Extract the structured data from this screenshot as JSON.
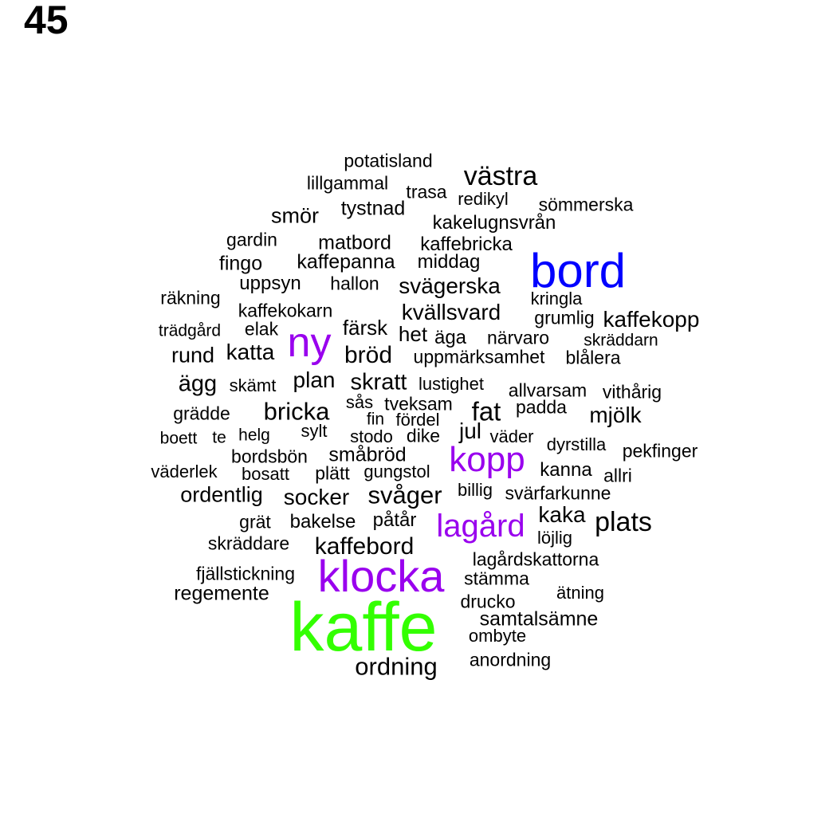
{
  "page_number": "45",
  "colors": {
    "default": "#000000",
    "blue": "#0000ff",
    "purple": "#9900ee",
    "green": "#33ff00"
  },
  "words": [
    {
      "text": "potatisland",
      "color": "default"
    },
    {
      "text": "västra",
      "color": "default"
    },
    {
      "text": "lillgammal",
      "color": "default"
    },
    {
      "text": "trasa",
      "color": "default"
    },
    {
      "text": "redikyl",
      "color": "default"
    },
    {
      "text": "sömmerska",
      "color": "default"
    },
    {
      "text": "tystnad",
      "color": "default"
    },
    {
      "text": "smör",
      "color": "default"
    },
    {
      "text": "kakelugnsvrån",
      "color": "default"
    },
    {
      "text": "gardin",
      "color": "default"
    },
    {
      "text": "matbord",
      "color": "default"
    },
    {
      "text": "kaffebricka",
      "color": "default"
    },
    {
      "text": "bord",
      "color": "blue"
    },
    {
      "text": "fingo",
      "color": "default"
    },
    {
      "text": "kaffepanna",
      "color": "default"
    },
    {
      "text": "middag",
      "color": "default"
    },
    {
      "text": "uppsyn",
      "color": "default"
    },
    {
      "text": "hallon",
      "color": "default"
    },
    {
      "text": "svägerska",
      "color": "default"
    },
    {
      "text": "räkning",
      "color": "default"
    },
    {
      "text": "kringla",
      "color": "default"
    },
    {
      "text": "kaffekokarn",
      "color": "default"
    },
    {
      "text": "kvällsvard",
      "color": "default"
    },
    {
      "text": "grumlig",
      "color": "default"
    },
    {
      "text": "kaffekopp",
      "color": "default"
    },
    {
      "text": "trädgård",
      "color": "default"
    },
    {
      "text": "elak",
      "color": "default"
    },
    {
      "text": "färsk",
      "color": "default"
    },
    {
      "text": "het",
      "color": "default"
    },
    {
      "text": "äga",
      "color": "default"
    },
    {
      "text": "närvaro",
      "color": "default"
    },
    {
      "text": "skräddarn",
      "color": "default"
    },
    {
      "text": "ny",
      "color": "purple"
    },
    {
      "text": "rund",
      "color": "default"
    },
    {
      "text": "katta",
      "color": "default"
    },
    {
      "text": "bröd",
      "color": "default"
    },
    {
      "text": "uppmärksamhet",
      "color": "default"
    },
    {
      "text": "blålera",
      "color": "default"
    },
    {
      "text": "ägg",
      "color": "default"
    },
    {
      "text": "skämt",
      "color": "default"
    },
    {
      "text": "plan",
      "color": "default"
    },
    {
      "text": "skratt",
      "color": "default"
    },
    {
      "text": "lustighet",
      "color": "default"
    },
    {
      "text": "allvarsam",
      "color": "default"
    },
    {
      "text": "vithårig",
      "color": "default"
    },
    {
      "text": "sås",
      "color": "default"
    },
    {
      "text": "tveksam",
      "color": "default"
    },
    {
      "text": "fat",
      "color": "default"
    },
    {
      "text": "padda",
      "color": "default"
    },
    {
      "text": "grädde",
      "color": "default"
    },
    {
      "text": "bricka",
      "color": "default"
    },
    {
      "text": "fin",
      "color": "default"
    },
    {
      "text": "fördel",
      "color": "default"
    },
    {
      "text": "mjölk",
      "color": "default"
    },
    {
      "text": "sylt",
      "color": "default"
    },
    {
      "text": "jul",
      "color": "default"
    },
    {
      "text": "boett",
      "color": "default"
    },
    {
      "text": "te",
      "color": "default"
    },
    {
      "text": "helg",
      "color": "default"
    },
    {
      "text": "stodo",
      "color": "default"
    },
    {
      "text": "dike",
      "color": "default"
    },
    {
      "text": "väder",
      "color": "default"
    },
    {
      "text": "dyrstilla",
      "color": "default"
    },
    {
      "text": "pekfinger",
      "color": "default"
    },
    {
      "text": "bordsbön",
      "color": "default"
    },
    {
      "text": "småbröd",
      "color": "default"
    },
    {
      "text": "kopp",
      "color": "purple"
    },
    {
      "text": "väderlek",
      "color": "default"
    },
    {
      "text": "bosatt",
      "color": "default"
    },
    {
      "text": "plätt",
      "color": "default"
    },
    {
      "text": "gungstol",
      "color": "default"
    },
    {
      "text": "kanna",
      "color": "default"
    },
    {
      "text": "allri",
      "color": "default"
    },
    {
      "text": "ordentlig",
      "color": "default"
    },
    {
      "text": "socker",
      "color": "default"
    },
    {
      "text": "svåger",
      "color": "default"
    },
    {
      "text": "billig",
      "color": "default"
    },
    {
      "text": "svärfarkunne",
      "color": "default"
    },
    {
      "text": "kaka",
      "color": "default"
    },
    {
      "text": "grät",
      "color": "default"
    },
    {
      "text": "bakelse",
      "color": "default"
    },
    {
      "text": "påtår",
      "color": "default"
    },
    {
      "text": "lagård",
      "color": "purple"
    },
    {
      "text": "plats",
      "color": "default"
    },
    {
      "text": "löjlig",
      "color": "default"
    },
    {
      "text": "skräddare",
      "color": "default"
    },
    {
      "text": "kaffebord",
      "color": "default"
    },
    {
      "text": "lagårdskattorna",
      "color": "default"
    },
    {
      "text": "fjällstickning",
      "color": "default"
    },
    {
      "text": "klocka",
      "color": "purple"
    },
    {
      "text": "stämma",
      "color": "default"
    },
    {
      "text": "regemente",
      "color": "default"
    },
    {
      "text": "ätning",
      "color": "default"
    },
    {
      "text": "drucko",
      "color": "default"
    },
    {
      "text": "samtalsämne",
      "color": "default"
    },
    {
      "text": "kaffe",
      "color": "green"
    },
    {
      "text": "ombyte",
      "color": "default"
    },
    {
      "text": "anordning",
      "color": "default"
    },
    {
      "text": "ordning",
      "color": "default"
    }
  ]
}
